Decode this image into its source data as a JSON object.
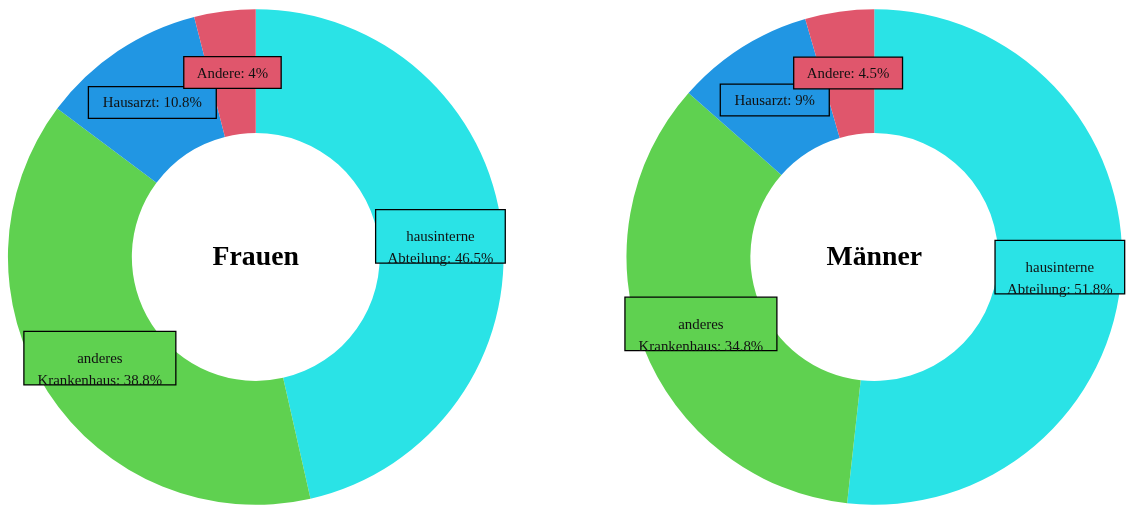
{
  "chart_data": [
    {
      "type": "donut",
      "title": "Frauen",
      "categories": [
        "hausinterne Abteilung",
        "anderes Krankenhaus",
        "Hausarzt",
        "Andere"
      ],
      "values": [
        46.5,
        38.8,
        10.8,
        4
      ],
      "colors": [
        "#2ae3e6",
        "#5fd150",
        "#2196e3",
        "#e0566c"
      ],
      "value_labels": [
        "46.5%",
        "38.8%",
        "10.8%",
        "4%"
      ]
    },
    {
      "type": "donut",
      "title": "Männer",
      "categories": [
        "hausinterne Abteilung",
        "anderes Krankenhaus",
        "Hausarzt",
        "Andere"
      ],
      "values": [
        51.8,
        34.8,
        9,
        4.5
      ],
      "colors": [
        "#2ae3e6",
        "#5fd150",
        "#2196e3",
        "#e0566c"
      ],
      "value_labels": [
        "51.8%",
        "34.8%",
        "9%",
        "4.5%"
      ]
    }
  ]
}
